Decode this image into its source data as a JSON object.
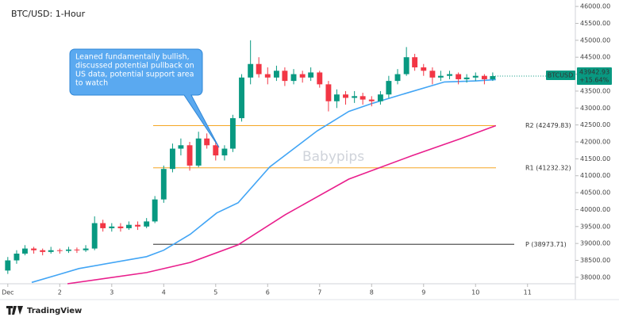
{
  "chart_data": {
    "type": "candlestick",
    "title": "BTC/USD: 1-Hour",
    "watermark": "Babypips",
    "brand": "TradingView",
    "up_color": "#089981",
    "down_color": "#f23645",
    "x": [
      1.0,
      1.17,
      1.33,
      1.5,
      1.67,
      1.83,
      2.0,
      2.17,
      2.33,
      2.5,
      2.67,
      2.83,
      3.0,
      3.17,
      3.33,
      3.5,
      3.67,
      3.83,
      4.0,
      4.17,
      4.33,
      4.5,
      4.67,
      4.83,
      5.0,
      5.17,
      5.33,
      5.5,
      5.67,
      5.83,
      6.0,
      6.17,
      6.33,
      6.5,
      6.67,
      6.83,
      7.0,
      7.17,
      7.33,
      7.5,
      7.67,
      7.83,
      8.0,
      8.17,
      8.33,
      8.5,
      8.67,
      8.83,
      9.0,
      9.17,
      9.33,
      9.5,
      9.67,
      9.83,
      10.0,
      10.17,
      10.33
    ],
    "open": [
      38200,
      38500,
      38700,
      38850,
      38800,
      38750,
      38800,
      38780,
      38820,
      38800,
      38850,
      39600,
      39450,
      39500,
      39450,
      39550,
      39500,
      39650,
      40300,
      41200,
      41800,
      41900,
      41300,
      42100,
      41900,
      41600,
      41800,
      42700,
      43900,
      44300,
      44000,
      43900,
      44100,
      43800,
      44000,
      43900,
      44050,
      43700,
      43200,
      43400,
      43300,
      43350,
      43250,
      43200,
      43400,
      43800,
      44000,
      44500,
      44200,
      44100,
      43900,
      43950,
      44000,
      43850,
      43900,
      43950,
      43850
    ],
    "high": [
      38600,
      38800,
      38950,
      38900,
      38850,
      38900,
      38850,
      38900,
      38880,
      38950,
      39800,
      39700,
      39600,
      39600,
      39650,
      39650,
      39750,
      40400,
      41300,
      41950,
      42100,
      42000,
      42300,
      42250,
      42000,
      41900,
      42800,
      44000,
      45000,
      44500,
      44200,
      44250,
      44200,
      44150,
      44100,
      44200,
      44100,
      43800,
      43550,
      43500,
      43500,
      43450,
      43350,
      43500,
      43950,
      44150,
      44800,
      44600,
      44300,
      44200,
      44100,
      44100,
      44050,
      44000,
      44050,
      44000,
      44050
    ],
    "low": [
      38100,
      38400,
      38650,
      38700,
      38650,
      38700,
      38700,
      38720,
      38720,
      38750,
      38800,
      39350,
      39350,
      39350,
      39400,
      39400,
      39450,
      39600,
      40200,
      41100,
      41600,
      41150,
      41250,
      41800,
      41450,
      41450,
      41700,
      42600,
      43700,
      43900,
      43700,
      43800,
      43650,
      43700,
      43750,
      43800,
      43600,
      42900,
      43000,
      43100,
      43150,
      43100,
      43050,
      43100,
      43300,
      43700,
      43950,
      44100,
      43950,
      43700,
      43800,
      43850,
      43700,
      43750,
      43800,
      43700,
      43800
    ],
    "close": [
      38500,
      38700,
      38850,
      38800,
      38750,
      38800,
      38780,
      38820,
      38800,
      38850,
      39600,
      39450,
      39500,
      39450,
      39550,
      39500,
      39650,
      40300,
      41200,
      41800,
      41900,
      41300,
      42100,
      41900,
      41600,
      41800,
      42700,
      43900,
      44300,
      44000,
      43900,
      44100,
      43800,
      44000,
      43900,
      44050,
      43700,
      43200,
      43400,
      43300,
      43350,
      43250,
      43200,
      43400,
      43800,
      44000,
      44500,
      44200,
      44100,
      43900,
      43950,
      44000,
      43850,
      43900,
      43950,
      43850,
      43942.93
    ],
    "lines": [
      {
        "color": "#42a5f5",
        "x": [
          1.46,
          2.0,
          2.37,
          3.67,
          4.0,
          4.51,
          5.02,
          5.43,
          6.04,
          6.95,
          7.56,
          8.02,
          8.63,
          9.4,
          10.01,
          10.39
        ],
        "values": [
          37850,
          38090,
          38260,
          38610,
          38800,
          39270,
          39900,
          40200,
          41260,
          42320,
          42900,
          43140,
          43420,
          43770,
          43800,
          43840
        ]
      },
      {
        "color": "#e91e8c",
        "x": [
          2.15,
          3.67,
          4.51,
          5.43,
          6.34,
          7.56,
          8.79,
          9.7,
          10.39
        ],
        "values": [
          37810,
          38140,
          38440,
          38960,
          39850,
          40900,
          41600,
          42090,
          42480
        ]
      }
    ],
    "levels": [
      {
        "value": 42479.83,
        "label": "R2 (42479.83)",
        "color": "#f5a623"
      },
      {
        "value": 41232.32,
        "label": "R1 (41232.32)",
        "color": "#f5a623"
      },
      {
        "value": 38973.71,
        "label": "P (38973.71)",
        "color": "#555555"
      }
    ],
    "annotation": [
      "Leaned fundamentally bullish,",
      "discussed potential pullback on",
      "US data, potential support area",
      "to watch"
    ],
    "price_tag": {
      "symbol": "BTCUSD",
      "price": 43942.93,
      "change": {
        "value": 15.64,
        "label": "+15.64%"
      },
      "color": "#089981"
    },
    "xlim": [
      0.85,
      11.92
    ],
    "xticks": [
      {
        "value": 1,
        "label": "Dec"
      },
      2,
      3,
      4,
      5,
      6,
      7,
      8,
      9,
      10,
      11
    ],
    "ylim": [
      37810,
      46190
    ],
    "yticks": [
      {
        "value": 38000,
        "label": "38000.00"
      },
      {
        "value": 38500,
        "label": "38500.00"
      },
      {
        "value": 39000,
        "label": "39000.00"
      },
      {
        "value": 39500,
        "label": "39500.00"
      },
      {
        "value": 40000,
        "label": "40000.00"
      },
      {
        "value": 40500,
        "label": "40500.00"
      },
      {
        "value": 41000,
        "label": "41000.00"
      },
      {
        "value": 41500,
        "label": "41500.00"
      },
      {
        "value": 42000,
        "label": "42000.00"
      },
      {
        "value": 42500,
        "label": "42500.00"
      },
      {
        "value": 43000,
        "label": "43000.00"
      },
      {
        "value": 43500,
        "label": "43500.00"
      },
      {
        "value": 44000,
        "label": "44000.00"
      },
      {
        "value": 44500,
        "label": "44500.00"
      },
      {
        "value": 45000,
        "label": "45000.00"
      },
      {
        "value": 45500,
        "label": "45500.00"
      },
      {
        "value": 46000,
        "label": "46000.00"
      }
    ]
  }
}
